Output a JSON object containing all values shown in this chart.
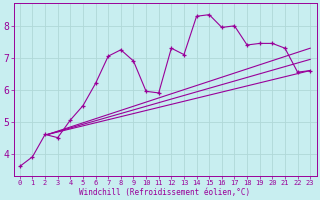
{
  "background_color": "#c8eef0",
  "grid_color": "#b0d8d8",
  "line_color": "#990099",
  "marker_color": "#990099",
  "xlabel": "Windchill (Refroidissement éolien,°C)",
  "xlabel_color": "#990099",
  "tick_color": "#990099",
  "xlim": [
    -0.5,
    23.5
  ],
  "ylim": [
    3.3,
    8.7
  ],
  "x_ticks": [
    0,
    1,
    2,
    3,
    4,
    5,
    6,
    7,
    8,
    9,
    10,
    11,
    12,
    13,
    14,
    15,
    16,
    17,
    18,
    19,
    20,
    21,
    22,
    23
  ],
  "y_ticks": [
    4,
    5,
    6,
    7,
    8
  ],
  "main_line": {
    "x": [
      0,
      1,
      2,
      3,
      4,
      5,
      6,
      7,
      8,
      9,
      10,
      11,
      12,
      13,
      14,
      15,
      16,
      17,
      18,
      19,
      20,
      21,
      22,
      23
    ],
    "y": [
      3.6,
      3.9,
      4.6,
      4.5,
      5.05,
      5.5,
      6.2,
      7.05,
      7.25,
      6.9,
      5.95,
      5.9,
      7.3,
      7.1,
      8.3,
      8.35,
      7.95,
      8.0,
      7.4,
      7.45,
      7.45,
      7.3,
      6.55,
      6.6
    ]
  },
  "trend_lines": [
    {
      "x": [
        2.2,
        23
      ],
      "y": [
        4.6,
        6.6
      ]
    },
    {
      "x": [
        2.2,
        23
      ],
      "y": [
        4.6,
        7.3
      ]
    },
    {
      "x": [
        2.2,
        23
      ],
      "y": [
        4.6,
        6.95
      ]
    }
  ]
}
